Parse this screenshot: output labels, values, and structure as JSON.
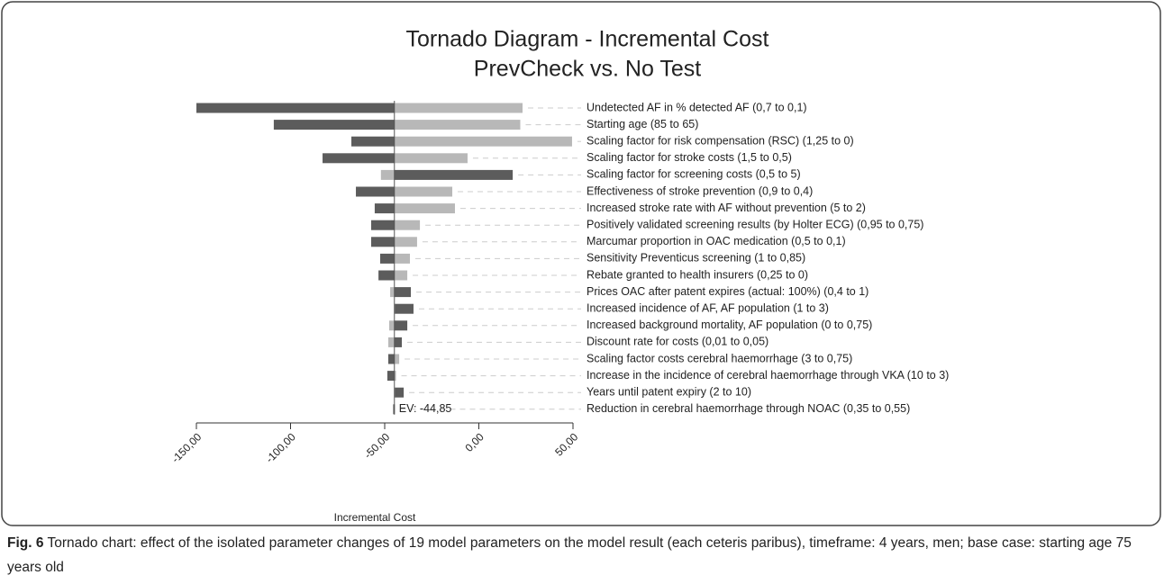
{
  "chart_data": {
    "type": "tornado",
    "title": "Tornado Diagram - Incremental Cost",
    "subtitle": "PrevCheck vs. No Test",
    "x_label": "Incremental Cost",
    "categories": [
      "Undetected AF in % detected AF (0,7 to 0,1)",
      "Starting age (85 to 65)",
      "Scaling factor for risk compensation (RSC) (1,25 to 0)",
      "Scaling factor for stroke costs (1,5 to 0,5)",
      "Scaling factor for screening costs (0,5 to 5)",
      "Effectiveness of stroke prevention (0,9 to 0,4)",
      "Increased stroke rate with AF without prevention (5 to 2)",
      "Positively validated screening results (by Holter ECG) (0,95 to 0,75)",
      "Marcumar proportion in OAC medication (0,5 to 0,1)",
      "Sensitivity Preventicus screening (1 to 0,85)",
      "Rebate granted to health insurers (0,25 to 0)",
      "Prices OAC after patent expires (actual: 100%) (0,4 to 1)",
      "Increased incidence of AF, AF population (1 to 3)",
      "Increased background mortality, AF population (0 to 0,75)",
      "Discount rate for costs (0,01 to 0,05)",
      "Scaling factor costs cerebral haemorrhage (3 to 0,75)",
      "Increase in the incidence of cerebral haemorrhage through VKA (10 to 3)",
      "Years until patent expiry (2 to 10)",
      "Reduction in cerebral haemorrhage through NOAC (0,35 to 0,55)"
    ],
    "series": [
      {
        "color": "#5c5c5c",
        "values": [
          -150,
          -108.9,
          -67.7,
          -83,
          18,
          -65.3,
          -55.3,
          -57.2,
          -57.2,
          -52.4,
          -53.3,
          -36.1,
          -34.7,
          -38,
          -40.9,
          -48.1,
          -48.6,
          -39.9,
          -45.5
        ]
      },
      {
        "color": "#b8b8b8",
        "values": [
          23.2,
          22,
          49.5,
          -6,
          -52,
          -14.1,
          -12.7,
          -31.3,
          -32.8,
          -36.6,
          -38,
          -47.1,
          -45,
          -47.6,
          -48.1,
          -42.3,
          -44,
          -45,
          -44.5
        ]
      }
    ],
    "base": -44.85,
    "base_label": "EV: -44,85",
    "xlim": [
      -150,
      50
    ],
    "xticks": [
      {
        "value": -150,
        "label": "-150,00"
      },
      {
        "value": -100,
        "label": "-100,00"
      },
      {
        "value": -50,
        "label": "-50,00"
      },
      {
        "value": 0,
        "label": "0,00"
      },
      {
        "value": 50,
        "label": "50,00"
      }
    ]
  },
  "caption": {
    "label": "Fig. 6",
    "text": "Tornado chart: effect of the isolated parameter changes of 19 model parameters on the model result (each ceteris paribus), timeframe: 4 years, men; base case: starting age 75 years old"
  }
}
